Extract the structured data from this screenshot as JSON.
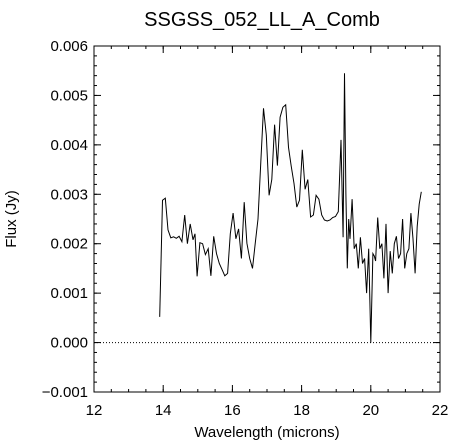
{
  "chart_data": {
    "type": "line",
    "title": "SSGSS_052_LL_A_Comb",
    "xlabel": "Wavelength (microns)",
    "ylabel": "Flux (Jy)",
    "xlim": [
      12,
      22
    ],
    "ylim": [
      -0.001,
      0.006
    ],
    "x_ticks": [
      "12",
      "14",
      "16",
      "18",
      "20",
      "22"
    ],
    "y_ticks": [
      "−0.001",
      "0.000",
      "0.001",
      "0.002",
      "0.003",
      "0.004",
      "0.005",
      "0.006"
    ],
    "grid": false,
    "zero_line": {
      "y": 0.0,
      "style": "dotted"
    },
    "series": [
      {
        "color": "#000000",
        "x": [
          13.9,
          13.98,
          14.06,
          14.14,
          14.22,
          14.3,
          14.38,
          14.46,
          14.54,
          14.62,
          14.7,
          14.78,
          14.86,
          14.92,
          14.98,
          15.06,
          15.14,
          15.22,
          15.3,
          15.38,
          15.46,
          15.54,
          15.62,
          15.7,
          15.78,
          15.86,
          15.94,
          16.02,
          16.1,
          16.18,
          16.26,
          16.34,
          16.42,
          16.5,
          16.58,
          16.66,
          16.74,
          16.82,
          16.9,
          16.98,
          17.06,
          17.14,
          17.22,
          17.3,
          17.38,
          17.46,
          17.54,
          17.62,
          17.7,
          17.78,
          17.86,
          17.94,
          18.02,
          18.1,
          18.18,
          18.26,
          18.34,
          18.42,
          18.5,
          18.58,
          18.66,
          18.74,
          18.82,
          18.9,
          18.98,
          19.06,
          19.14,
          19.2,
          19.24,
          19.28,
          19.32,
          19.36,
          19.4,
          19.46,
          19.52,
          19.58,
          19.64,
          19.7,
          19.76,
          19.82,
          19.88,
          19.94,
          20.0,
          20.06,
          20.1,
          20.14,
          20.2,
          20.26,
          20.32,
          20.38,
          20.44,
          20.5,
          20.56,
          20.62,
          20.68,
          20.74,
          20.8,
          20.86,
          20.92,
          20.98,
          21.04,
          21.1,
          21.16,
          21.22,
          21.28,
          21.34,
          21.4,
          21.46
        ],
        "y": [
          0.00052,
          0.00288,
          0.00292,
          0.00228,
          0.00212,
          0.00214,
          0.00211,
          0.00215,
          0.00204,
          0.00258,
          0.002,
          0.0024,
          0.00208,
          0.0022,
          0.00134,
          0.00202,
          0.002,
          0.00178,
          0.0019,
          0.00135,
          0.00215,
          0.0018,
          0.0016,
          0.00148,
          0.00135,
          0.0014,
          0.0022,
          0.00262,
          0.0021,
          0.0023,
          0.0017,
          0.00284,
          0.00201,
          0.0017,
          0.0015,
          0.002,
          0.0025,
          0.00365,
          0.00474,
          0.0042,
          0.00298,
          0.0033,
          0.00441,
          0.00358,
          0.00456,
          0.00476,
          0.00481,
          0.00395,
          0.00357,
          0.00322,
          0.00274,
          0.00288,
          0.0039,
          0.0031,
          0.0033,
          0.00254,
          0.00258,
          0.00298,
          0.0029,
          0.00258,
          0.00248,
          0.00246,
          0.00248,
          0.00253,
          0.00255,
          0.00265,
          0.0041,
          0.00213,
          0.00545,
          0.003,
          0.0015,
          0.0025,
          0.0021,
          0.0029,
          0.0019,
          0.002,
          0.0015,
          0.00213,
          0.0016,
          0.0017,
          0.001,
          0.0019,
          0.0,
          0.0018,
          0.00175,
          0.00165,
          0.00253,
          0.0019,
          0.002,
          0.0013,
          0.0024,
          0.001,
          0.00185,
          0.0014,
          0.002,
          0.00215,
          0.0017,
          0.0018,
          0.0025,
          0.0015,
          0.0018,
          0.0019,
          0.00262,
          0.0021,
          0.0014,
          0.00235,
          0.0028,
          0.00305
        ]
      }
    ]
  }
}
